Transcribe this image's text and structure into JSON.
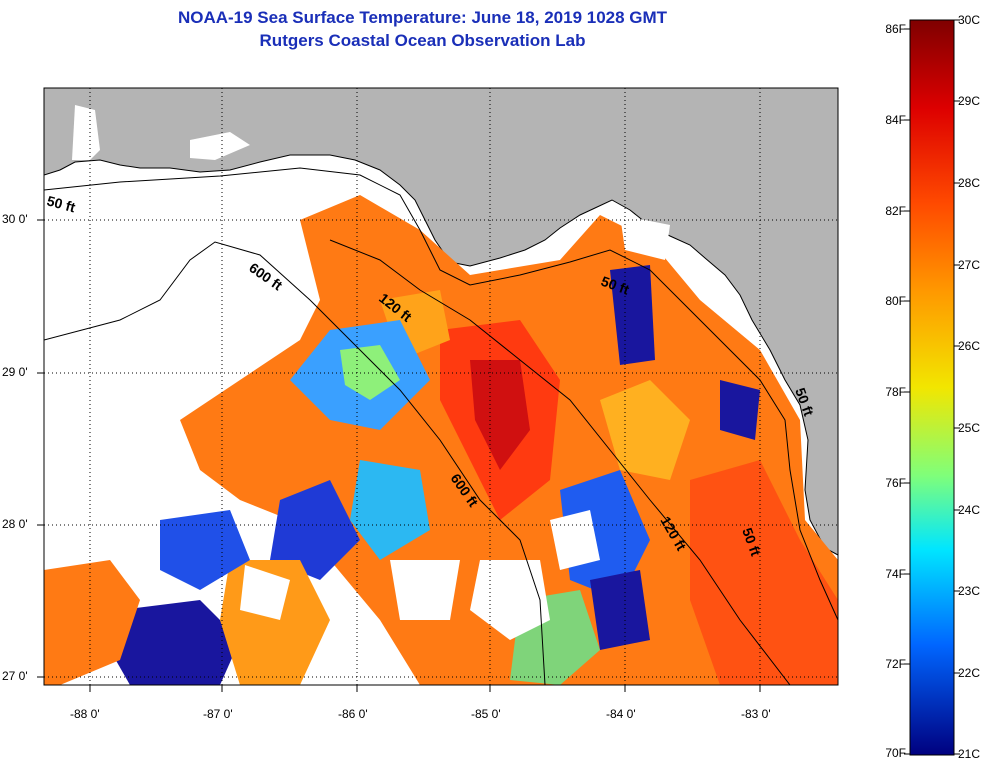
{
  "title": {
    "line1": "NOAA-19 Sea Surface Temperature:  June 18, 2019 1028 GMT",
    "line2": "Rutgers Coastal Ocean Observation Lab"
  },
  "map": {
    "lon_ticks": [
      "-88 0'",
      "-87 0'",
      "-86 0'",
      "-85 0'",
      "-84 0'",
      "-83 0'"
    ],
    "lat_ticks": [
      "30 0'",
      "29 0'",
      "28 0'",
      "27 0'"
    ],
    "depth_labels": [
      "50 ft",
      "600 ft",
      "120 ft",
      "50 ft",
      "600 ft",
      "120 ft",
      "50 ft",
      "50 ft"
    ]
  },
  "colorbar": {
    "fahrenheit": [
      "86F",
      "84F",
      "82F",
      "80F",
      "78F",
      "76F",
      "74F",
      "72F",
      "70F"
    ],
    "celsius": [
      "30C",
      "29C",
      "28C",
      "27C",
      "26C",
      "25C",
      "24C",
      "23C",
      "22C",
      "21C"
    ]
  },
  "colors": {
    "title": "#1a2fb8",
    "land": "#b4b4b4",
    "cloud": "#ffffff"
  }
}
